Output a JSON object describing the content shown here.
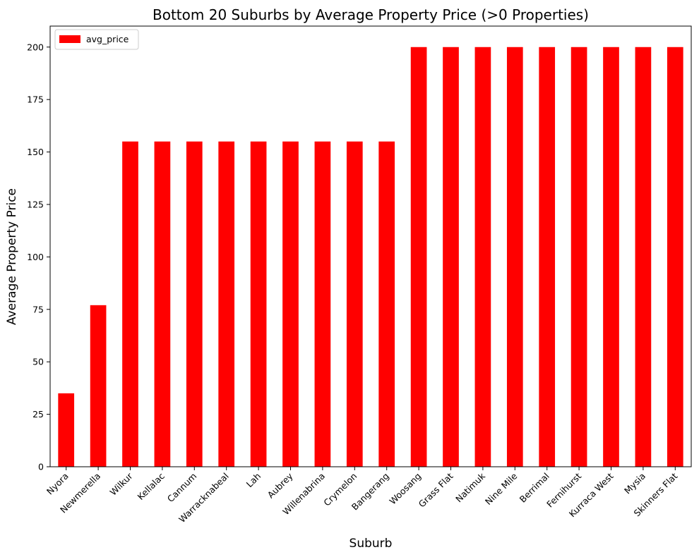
{
  "chart_data": {
    "type": "bar",
    "title": "Bottom 20 Suburbs by Average Property Price (>0 Properties)",
    "xlabel": "Suburb",
    "ylabel": "Average Property Price",
    "ylim": [
      0,
      210
    ],
    "yticks": [
      0,
      25,
      50,
      75,
      100,
      125,
      150,
      175,
      200
    ],
    "grid": false,
    "legend_position": "top-left",
    "bar_color": "#ff0000",
    "categories": [
      "Nyora",
      "Newmerella",
      "Wilkur",
      "Kellalac",
      "Cannum",
      "Warracknabeal",
      "Lah",
      "Aubrey",
      "Willenabrina",
      "Crymelon",
      "Bangerang",
      "Woosang",
      "Grass Flat",
      "Natimuk",
      "Nine Mile",
      "Berrimal",
      "Fernihurst",
      "Kurraca West",
      "Mysia",
      "Skinners Flat"
    ],
    "series": [
      {
        "name": "avg_price",
        "values": [
          35,
          77,
          155,
          155,
          155,
          155,
          155,
          155,
          155,
          155,
          155,
          200,
          200,
          200,
          200,
          200,
          200,
          200,
          200,
          200
        ]
      }
    ]
  }
}
